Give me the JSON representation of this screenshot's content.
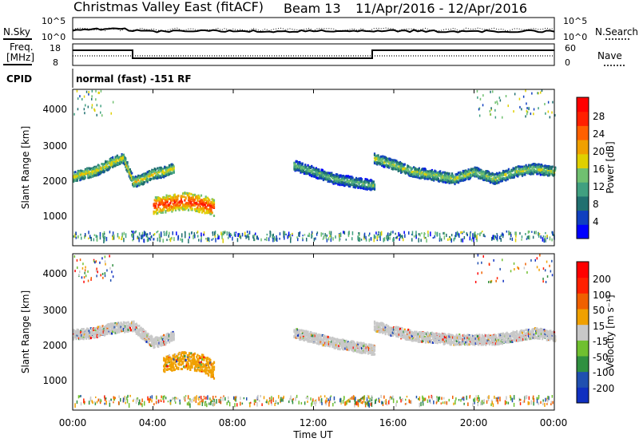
{
  "header": {
    "title": "Christmas Valley East (fitACF)",
    "beam": "Beam 13",
    "date_range": "11/Apr/2016 - 12/Apr/2016"
  },
  "nsky_panel": {
    "left_label": "N.Sky",
    "left_ticks": [
      "10^5",
      "10^0"
    ],
    "right_label": "N.Search",
    "right_ticks": [
      "10^5",
      "10^0"
    ]
  },
  "freq_panel": {
    "left_label_1": "Freq.",
    "left_label_2": "[MHz]",
    "left_ticks": [
      "18",
      "8"
    ],
    "right_label": "Nave",
    "right_ticks": [
      "60",
      "0"
    ]
  },
  "cpid_panel": {
    "label": "CPID",
    "text": "normal (fast) -151 RF"
  },
  "power_colorbar": {
    "label": "Power [dB]",
    "ticks": [
      "28",
      "24",
      "20",
      "16",
      "12",
      "8",
      "4"
    ],
    "colors": [
      "#0000ff",
      "#1040c0",
      "#207070",
      "#40a080",
      "#70c070",
      "#e0d000",
      "#f0a000",
      "#ff6000",
      "#ff2000",
      "#ff0000"
    ]
  },
  "velocity_colorbar": {
    "label": "Velocity [m s⁻¹]",
    "ticks": [
      "200",
      "100",
      "50",
      "15",
      "-15",
      "-50",
      "-100",
      "-200"
    ],
    "colors": [
      "#1030c0",
      "#2050b0",
      "#309040",
      "#70c030",
      "#c8c8c8",
      "#f0a000",
      "#f06000",
      "#ff2000",
      "#ff0000"
    ]
  },
  "time_axis": {
    "label": "Time UT",
    "ticks": [
      "00:00",
      "04:00",
      "08:00",
      "12:00",
      "16:00",
      "20:00",
      "00:00"
    ]
  },
  "chart_data": [
    {
      "type": "heatmap",
      "title": "",
      "xlabel": "Time UT",
      "ylabel": "Slant Range [km]",
      "xlim": [
        0,
        24
      ],
      "ylim": [
        0,
        4600
      ],
      "yticks": [
        "4000",
        "3000",
        "2000",
        "1000"
      ],
      "colorbar": "Power [dB]",
      "color_range": [
        0,
        30
      ],
      "bands": [
        {
          "name": "main_echo",
          "t": [
            0.0,
            0.5,
            1.0,
            1.5,
            2.0,
            2.5,
            3.0,
            3.5,
            4.0,
            4.5,
            5.0
          ],
          "range": [
            2050,
            2150,
            2200,
            2350,
            2500,
            2600,
            1900,
            2000,
            2150,
            2200,
            2300
          ],
          "power": 18
        },
        {
          "name": "morning_patch",
          "t": [
            4.0,
            4.5,
            5.0,
            5.5,
            6.0,
            6.5,
            7.0
          ],
          "range": [
            1200,
            1250,
            1300,
            1350,
            1300,
            1250,
            1150
          ],
          "power": 26
        },
        {
          "name": "afternoon_arc",
          "t": [
            11.0,
            12.0,
            13.0,
            14.0,
            15.0
          ],
          "range": [
            2400,
            2200,
            2000,
            1900,
            1800
          ],
          "power": 14
        },
        {
          "name": "evening_echo",
          "t": [
            15.0,
            16.0,
            17.0,
            18.0,
            19.0,
            20.0,
            21.0,
            22.0,
            23.0,
            24.0
          ],
          "range": [
            2600,
            2400,
            2200,
            2100,
            2000,
            2200,
            2000,
            2200,
            2300,
            2200
          ],
          "power": 16
        }
      ]
    },
    {
      "type": "heatmap",
      "title": "",
      "xlabel": "Time UT",
      "ylabel": "Slant Range [km]",
      "xlim": [
        0,
        24
      ],
      "ylim": [
        0,
        4600
      ],
      "yticks": [
        "4000",
        "3000",
        "2000",
        "1000"
      ],
      "colorbar": "Velocity [m s⁻¹]",
      "color_range": [
        -200,
        200
      ],
      "bands": [
        {
          "name": "main_echo",
          "t": [
            0.0,
            1.0,
            2.0,
            3.0,
            4.0,
            5.0
          ],
          "range": [
            2250,
            2300,
            2450,
            2500,
            2000,
            2200
          ],
          "velocity": 0
        },
        {
          "name": "morning_patch",
          "t": [
            4.5,
            5.5,
            6.5,
            7.0
          ],
          "range": [
            1400,
            1500,
            1400,
            1200
          ],
          "velocity": -40
        },
        {
          "name": "afternoon_arc",
          "t": [
            11.0,
            13.0,
            15.0
          ],
          "range": [
            2300,
            2000,
            1800
          ],
          "velocity": 0
        },
        {
          "name": "evening_echo",
          "t": [
            15.0,
            17.0,
            19.0,
            21.0,
            23.0,
            24.0
          ],
          "range": [
            2500,
            2200,
            2100,
            2100,
            2300,
            2200
          ],
          "velocity": 0
        }
      ]
    }
  ]
}
